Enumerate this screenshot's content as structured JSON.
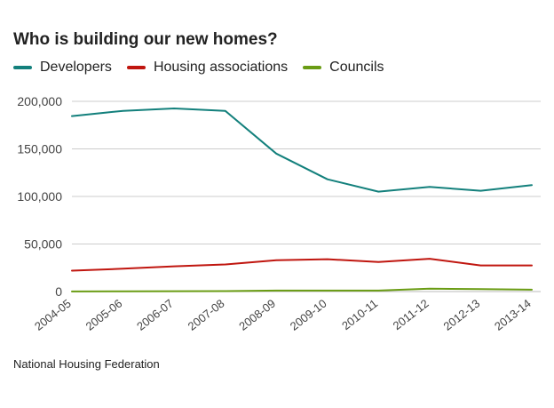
{
  "title": "Who is building our new homes?",
  "source": "National Housing Federation",
  "colors": {
    "developers": "#13807c",
    "housing_associations": "#c0160f",
    "councils": "#6a9c14",
    "grid": "#cccccc",
    "axis_text": "#444444"
  },
  "chart_data": {
    "type": "line",
    "x": [
      "2004-05",
      "2005-06",
      "2006-07",
      "2007-08",
      "2008-09",
      "2009-10",
      "2010-11",
      "2011-12",
      "2012-13",
      "2013-14"
    ],
    "series": [
      {
        "name": "Developers",
        "color": "#13807c",
        "values": [
          184500,
          190000,
          192500,
          190000,
          145000,
          118000,
          105000,
          110000,
          106000,
          112000
        ]
      },
      {
        "name": "Housing associations",
        "color": "#c0160f",
        "values": [
          22000,
          24000,
          26500,
          28500,
          33000,
          34000,
          31000,
          34500,
          27500,
          27500
        ]
      },
      {
        "name": "Councils",
        "color": "#6a9c14",
        "values": [
          100,
          300,
          400,
          500,
          1000,
          1000,
          1000,
          3000,
          2500,
          2000
        ]
      }
    ],
    "yticks": [
      "0",
      "50,000",
      "100,000",
      "150,000",
      "200,000"
    ],
    "ytick_values": [
      0,
      50000,
      100000,
      150000,
      200000
    ],
    "ylim": [
      0,
      200000
    ],
    "xlabel": "",
    "ylabel": "",
    "grid": true,
    "legend": "top-left"
  }
}
